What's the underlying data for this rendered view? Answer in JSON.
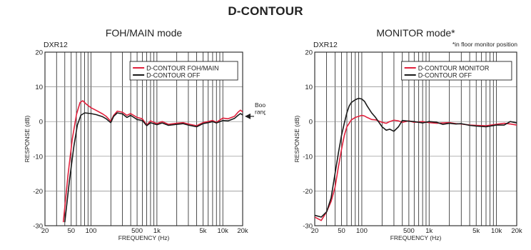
{
  "page_title": "D-CONTOUR",
  "chart_data": [
    {
      "type": "line",
      "title": "FOH/MAIN mode",
      "model": "DXR12",
      "note": "",
      "xlabel": "FREQUENCY (Hz)",
      "ylabel": "RESPONSE (dB)",
      "x_scale": "log",
      "xlim": [
        20,
        20000
      ],
      "ylim": [
        -30,
        20
      ],
      "xticks": [
        20,
        50,
        100,
        500,
        1000,
        5000,
        10000,
        20000
      ],
      "xtick_labels": [
        "20",
        "50",
        "100",
        "500",
        "1k",
        "5k",
        "10k",
        "20k"
      ],
      "yticks": [
        -30,
        -20,
        -10,
        0,
        10,
        20
      ],
      "ytick_labels": [
        "-30",
        "-20",
        "-10",
        "0",
        "10",
        "20"
      ],
      "grid": true,
      "legend_position": "top-right",
      "annotation": {
        "text_lines": [
          "Boost",
          "range"
        ]
      },
      "series": [
        {
          "name": "D-CONTOUR FOH/MAIN",
          "color": "#e0203c",
          "x": [
            38,
            45,
            52,
            60,
            68,
            75,
            85,
            100,
            120,
            150,
            170,
            190,
            200,
            220,
            250,
            300,
            350,
            400,
            500,
            600,
            700,
            800,
            1000,
            1200,
            1500,
            2000,
            2500,
            3000,
            4000,
            5000,
            6000,
            7000,
            8000,
            10000,
            12000,
            15000,
            17000,
            18500,
            20000
          ],
          "y": [
            -29,
            -15,
            -5,
            2,
            5.5,
            6,
            5,
            4,
            3.2,
            2.2,
            1.5,
            0.5,
            0.1,
            1.8,
            3,
            2.7,
            1.8,
            2.3,
            1.2,
            0.8,
            -1,
            0.2,
            -0.6,
            0,
            -0.8,
            -0.5,
            -0.3,
            -0.7,
            -1.2,
            -0.3,
            0,
            0.3,
            -0.2,
            1,
            0.8,
            1.5,
            2.7,
            3.3,
            2.8
          ]
        },
        {
          "name": "D-CONTOUR OFF",
          "color": "#1a1a1a",
          "x": [
            40,
            47,
            55,
            62,
            70,
            80,
            100,
            120,
            150,
            170,
            190,
            200,
            220,
            250,
            300,
            350,
            400,
            500,
            600,
            700,
            800,
            1000,
            1200,
            1500,
            2000,
            2500,
            3000,
            4000,
            5000,
            6000,
            7000,
            8000,
            10000,
            12000,
            15000,
            17000,
            18500,
            20000
          ],
          "y": [
            -29,
            -17,
            -7,
            -1,
            1.8,
            2.5,
            2.3,
            2,
            1.4,
            0.8,
            0,
            -0.3,
            1.5,
            2.5,
            2.2,
            1.2,
            1.8,
            0.6,
            0.3,
            -1.2,
            -0.3,
            -0.9,
            -0.4,
            -1.1,
            -0.8,
            -0.6,
            -1,
            -1.5,
            -0.6,
            -0.3,
            0,
            -0.4,
            0.3,
            0.2,
            0.9,
            1.8,
            2.3,
            1.9
          ]
        }
      ]
    },
    {
      "type": "line",
      "title": "MONITOR mode*",
      "model": "DXR12",
      "note": "*in floor monitor position",
      "xlabel": "FREQUENCY (Hz)",
      "ylabel": "RESPONSE (dB)",
      "x_scale": "log",
      "xlim": [
        20,
        20000
      ],
      "ylim": [
        -30,
        20
      ],
      "xticks": [
        20,
        50,
        100,
        500,
        1000,
        5000,
        10000,
        20000
      ],
      "xtick_labels": [
        "20",
        "50",
        "100",
        "500",
        "1k",
        "5k",
        "10k",
        "20k"
      ],
      "yticks": [
        -30,
        -20,
        -10,
        0,
        10,
        20
      ],
      "ytick_labels": [
        "-30",
        "-20",
        "-10",
        "0",
        "10",
        "20"
      ],
      "grid": true,
      "legend_position": "top-right",
      "series": [
        {
          "name": "D-CONTOUR MONITOR",
          "color": "#e0203c",
          "x": [
            20,
            25,
            30,
            35,
            40,
            45,
            50,
            55,
            60,
            65,
            70,
            80,
            90,
            100,
            110,
            120,
            140,
            160,
            200,
            230,
            260,
            300,
            350,
            400,
            500,
            600,
            800,
            1000,
            1300,
            1600,
            2000,
            2500,
            3000,
            4000,
            5000,
            7000,
            10000,
            13000,
            16000,
            20000
          ],
          "y": [
            -27.5,
            -28.5,
            -26,
            -23,
            -19,
            -13,
            -8,
            -4,
            -1.5,
            -0.5,
            0.5,
            1.2,
            1.5,
            1.8,
            1.6,
            1.2,
            0.6,
            0.5,
            -0.2,
            -0.5,
            0,
            0.4,
            0.2,
            -0.2,
            0.2,
            -0.2,
            0,
            -0.3,
            -0.5,
            -0.4,
            -0.3,
            -0.6,
            -0.7,
            -1,
            -1.1,
            -1.2,
            -0.8,
            -0.5,
            -0.7,
            -1
          ]
        },
        {
          "name": "D-CONTOUR OFF",
          "color": "#1a1a1a",
          "x": [
            20,
            25,
            30,
            35,
            40,
            45,
            50,
            55,
            60,
            65,
            70,
            80,
            90,
            100,
            110,
            120,
            140,
            160,
            200,
            230,
            260,
            300,
            350,
            400,
            500,
            600,
            800,
            1000,
            1300,
            1600,
            2000,
            2500,
            3000,
            4000,
            5000,
            7000,
            10000,
            13000,
            16000,
            20000
          ],
          "y": [
            -27,
            -27.5,
            -26,
            -22,
            -15,
            -9,
            -4,
            -0.5,
            2.5,
            4.5,
            5.5,
            6.3,
            6.7,
            6.5,
            5.8,
            4.5,
            2.5,
            1.2,
            -1.5,
            -2.5,
            -2.2,
            -2.8,
            -1.5,
            0.3,
            0.1,
            0,
            -0.4,
            0,
            -0.2,
            -0.8,
            -0.5,
            -0.7,
            -0.6,
            -1.1,
            -1.3,
            -1.5,
            -1,
            -1,
            0,
            -0.4
          ]
        }
      ]
    }
  ]
}
